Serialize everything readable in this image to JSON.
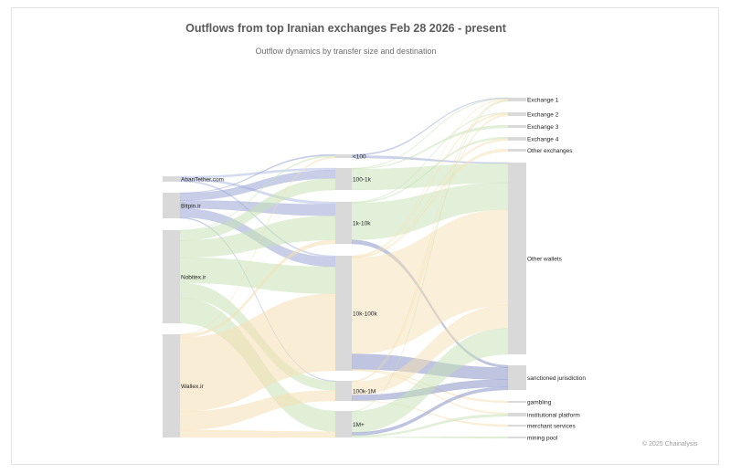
{
  "header": {
    "title": "Outflows from top Iranian exchanges Feb 28 2026 - present",
    "subtitle": "Outflow dynamics by transfer size and destination"
  },
  "footer": {
    "credit": "© 2025 Chainalysis"
  },
  "colors": {
    "node": "#d9d9d9",
    "bitpin": "#9aa6d6",
    "aban": "#b3bde3",
    "nobitex": "#c6e2b4",
    "wallex": "#f6dfb2",
    "to_sanctioned": "#7f8cc2"
  },
  "chart_data": {
    "type": "sankey",
    "title": "Outflows from top Iranian exchanges Feb 28 2026 - present",
    "subtitle": "Outflow dynamics by transfer size and destination",
    "columns": [
      [
        "AbanTether.com",
        "Bitpin.ir",
        "Nobitex.ir",
        "Wallex.ir"
      ],
      [
        "<100",
        "100-1k",
        "1k-10k",
        "10k-100k",
        "100k-1M",
        "1M+"
      ],
      [
        "Exchange 1",
        "Exchange 2",
        "Exchange 3",
        "Exchange 4",
        "Other exchanges",
        "Other wallets",
        "sanctioned jurisdiction",
        "gambling",
        "institutional platform",
        "merchant services",
        "mining pool"
      ]
    ],
    "links": [
      {
        "source": "AbanTether.com",
        "target": "100-1k",
        "value": 2
      },
      {
        "source": "AbanTether.com",
        "target": "1k-10k",
        "value": 2
      },
      {
        "source": "AbanTether.com",
        "target": "10k-100k",
        "value": 1.5
      },
      {
        "source": "Bitpin.ir",
        "target": "<100",
        "value": 0.5
      },
      {
        "source": "Bitpin.ir",
        "target": "100-1k",
        "value": 8
      },
      {
        "source": "Bitpin.ir",
        "target": "1k-10k",
        "value": 9
      },
      {
        "source": "Bitpin.ir",
        "target": "10k-100k",
        "value": 10
      },
      {
        "source": "Bitpin.ir",
        "target": "100k-1M",
        "value": 1
      },
      {
        "source": "Nobitex.ir",
        "target": "<100",
        "value": 0.5
      },
      {
        "source": "Nobitex.ir",
        "target": "100-1k",
        "value": 11
      },
      {
        "source": "Nobitex.ir",
        "target": "1k-10k",
        "value": 19
      },
      {
        "source": "Nobitex.ir",
        "target": "10k-100k",
        "value": 28
      },
      {
        "source": "Nobitex.ir",
        "target": "100k-1M",
        "value": 17
      },
      {
        "source": "Nobitex.ir",
        "target": "1M+",
        "value": 28
      },
      {
        "source": "Wallex.ir",
        "target": "<100",
        "value": 0.5
      },
      {
        "source": "Wallex.ir",
        "target": "1k-10k",
        "value": 3
      },
      {
        "source": "Wallex.ir",
        "target": "10k-100k",
        "value": 80
      },
      {
        "source": "Wallex.ir",
        "target": "100k-1M",
        "value": 20
      },
      {
        "source": "Wallex.ir",
        "target": "1M+",
        "value": 8
      },
      {
        "source": "<100",
        "target": "Exchange 1",
        "value": 0.5
      },
      {
        "source": "<100",
        "target": "Other wallets",
        "value": 1
      },
      {
        "source": "100-1k",
        "target": "Exchange 1",
        "value": 0.5
      },
      {
        "source": "100-1k",
        "target": "Exchange 3",
        "value": 0.5
      },
      {
        "source": "100-1k",
        "target": "Other wallets",
        "value": 20
      },
      {
        "source": "1k-10k",
        "target": "Exchange 2",
        "value": 0.5
      },
      {
        "source": "1k-10k",
        "target": "Exchange 4",
        "value": 0.5
      },
      {
        "source": "1k-10k",
        "target": "Other wallets",
        "value": 28
      },
      {
        "source": "1k-10k",
        "target": "sanctioned jurisdiction",
        "value": 3
      },
      {
        "source": "10k-100k",
        "target": "Exchange 1",
        "value": 0.5
      },
      {
        "source": "10k-100k",
        "target": "Exchange 2",
        "value": 1
      },
      {
        "source": "10k-100k",
        "target": "Exchange 4",
        "value": 0.5
      },
      {
        "source": "10k-100k",
        "target": "Other exchanges",
        "value": 0.5
      },
      {
        "source": "10k-100k",
        "target": "Other wallets",
        "value": 100
      },
      {
        "source": "10k-100k",
        "target": "sanctioned jurisdiction",
        "value": 16
      },
      {
        "source": "10k-100k",
        "target": "institutional platform",
        "value": 1
      },
      {
        "source": "10k-100k",
        "target": "gambling",
        "value": 0.5
      },
      {
        "source": "100k-1M",
        "target": "Exchange 1",
        "value": 1
      },
      {
        "source": "100k-1M",
        "target": "Exchange 2",
        "value": 1
      },
      {
        "source": "100k-1M",
        "target": "Other wallets",
        "value": 24
      },
      {
        "source": "100k-1M",
        "target": "sanctioned jurisdiction",
        "value": 10
      },
      {
        "source": "100k-1M",
        "target": "merchant services",
        "value": 0.5
      },
      {
        "source": "1M+",
        "target": "Exchange 1",
        "value": 0.5
      },
      {
        "source": "1M+",
        "target": "Other wallets",
        "value": 27
      },
      {
        "source": "1M+",
        "target": "sanctioned jurisdiction",
        "value": 4
      },
      {
        "source": "1M+",
        "target": "institutional platform",
        "value": 2
      },
      {
        "source": "1M+",
        "target": "mining pool",
        "value": 0.5
      }
    ]
  }
}
